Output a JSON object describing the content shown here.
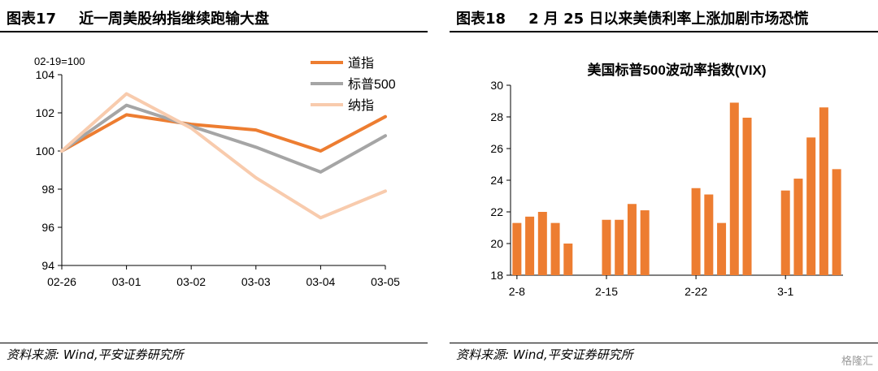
{
  "left": {
    "fig_num": "图表17",
    "title": "近一周美股纳指继续跑输大盘",
    "source": "资料来源: Wind,平安证券研究所",
    "chart_data": {
      "type": "line",
      "unit_note": "02-19=100",
      "categories": [
        "02-26",
        "03-01",
        "03-02",
        "03-03",
        "03-04",
        "03-05"
      ],
      "ylim": [
        94,
        104
      ],
      "yticks": [
        94,
        96,
        98,
        100,
        102,
        104
      ],
      "legend_position": "top-right",
      "series": [
        {
          "name": "道指",
          "color": "#ED7D31",
          "values": [
            100.0,
            101.9,
            101.4,
            101.1,
            100.0,
            101.8
          ]
        },
        {
          "name": "标普500",
          "color": "#A5A5A5",
          "values": [
            100.0,
            102.4,
            101.3,
            100.2,
            98.9,
            100.8
          ]
        },
        {
          "name": "纳指",
          "color": "#F8CBAD",
          "values": [
            100.0,
            103.0,
            101.2,
            98.6,
            96.5,
            97.9
          ]
        }
      ]
    }
  },
  "right": {
    "fig_num": "图表18",
    "title": "2 月 25 日以来美债利率上涨加剧市场恐慌",
    "source": "资料来源: Wind,平安证券研究所",
    "chart_data": {
      "type": "bar",
      "title": "美国标普500波动率指数(VIX)",
      "color": "#ED7D31",
      "ylim": [
        18,
        30
      ],
      "yticks": [
        18,
        20,
        22,
        24,
        26,
        28,
        30
      ],
      "x_tick_labels": [
        "2-8",
        "2-15",
        "2-22",
        "3-1"
      ],
      "x_tick_slots": [
        0,
        7,
        14,
        21
      ],
      "slot_count": 26,
      "bars": [
        {
          "slot": 0,
          "value": 21.3
        },
        {
          "slot": 1,
          "value": 21.7
        },
        {
          "slot": 2,
          "value": 22.0
        },
        {
          "slot": 3,
          "value": 21.3
        },
        {
          "slot": 4,
          "value": 20.0
        },
        {
          "slot": 7,
          "value": 21.5
        },
        {
          "slot": 8,
          "value": 21.5
        },
        {
          "slot": 9,
          "value": 22.5
        },
        {
          "slot": 10,
          "value": 22.1
        },
        {
          "slot": 14,
          "value": 23.5
        },
        {
          "slot": 15,
          "value": 23.1
        },
        {
          "slot": 16,
          "value": 21.3
        },
        {
          "slot": 17,
          "value": 28.9
        },
        {
          "slot": 18,
          "value": 27.95
        },
        {
          "slot": 21,
          "value": 23.35
        },
        {
          "slot": 22,
          "value": 24.1
        },
        {
          "slot": 23,
          "value": 26.7
        },
        {
          "slot": 24,
          "value": 28.6
        },
        {
          "slot": 25,
          "value": 24.7
        }
      ]
    }
  },
  "watermark": "格隆汇"
}
